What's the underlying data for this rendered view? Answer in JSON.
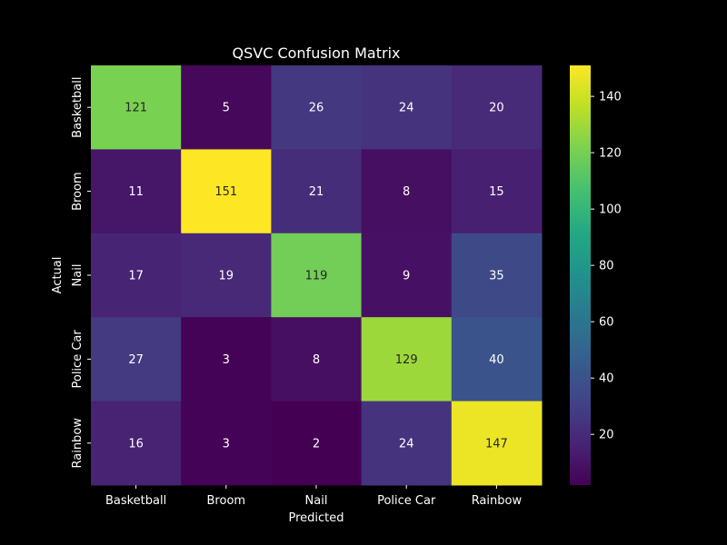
{
  "chart_data": {
    "type": "heatmap",
    "title": "QSVC Confusion Matrix",
    "xlabel": "Predicted",
    "ylabel": "Actual",
    "x_categories": [
      "Basketball",
      "Broom",
      "Nail",
      "Police Car",
      "Rainbow"
    ],
    "y_categories": [
      "Basketball",
      "Broom",
      "Nail",
      "Police Car",
      "Rainbow"
    ],
    "values": [
      [
        121,
        5,
        26,
        24,
        20
      ],
      [
        11,
        151,
        21,
        8,
        15
      ],
      [
        17,
        19,
        119,
        9,
        35
      ],
      [
        27,
        3,
        8,
        129,
        40
      ],
      [
        16,
        3,
        2,
        24,
        147
      ]
    ],
    "colormap": "viridis",
    "vmin": 2,
    "vmax": 151,
    "colorbar_ticks": [
      20,
      40,
      60,
      80,
      100,
      120,
      140
    ],
    "colors": {
      "background": "#000000",
      "text": "#ffffff"
    }
  }
}
